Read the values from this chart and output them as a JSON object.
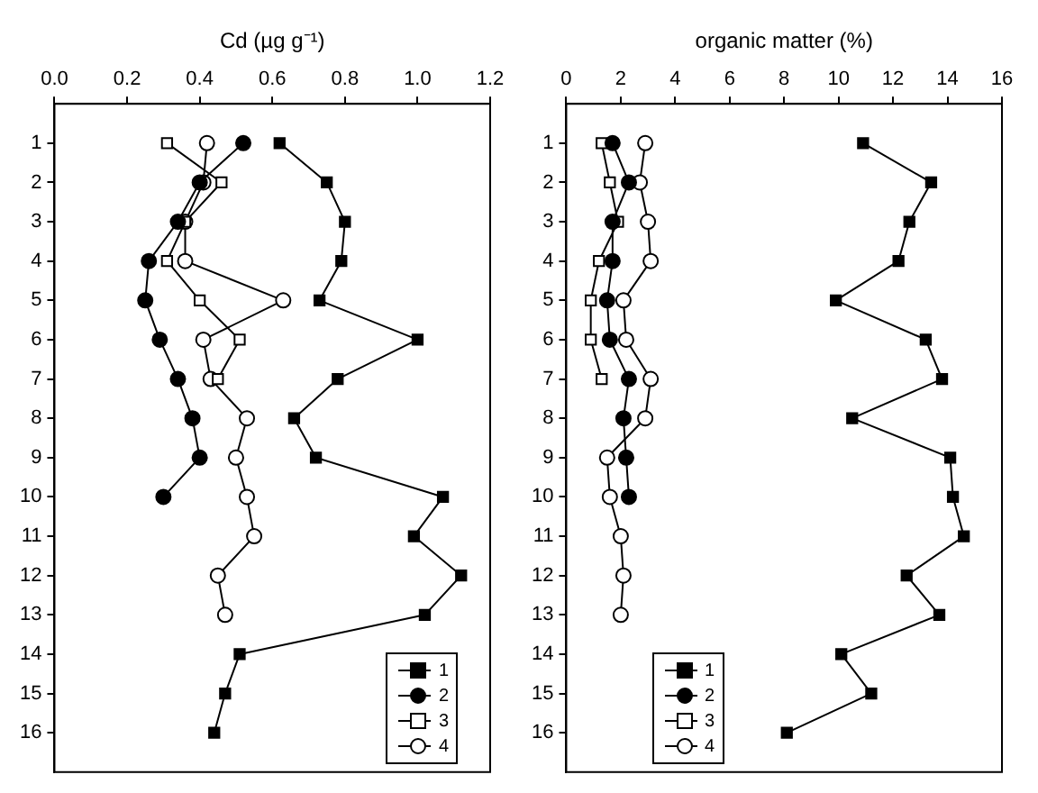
{
  "chart_data": [
    {
      "type": "line",
      "xlabel": "Cd (µg g⁻¹)",
      "xlim": [
        0,
        1.2
      ],
      "xticks": [
        {
          "value": 0,
          "label": "0.0"
        },
        {
          "value": 0.2,
          "label": "0.2"
        },
        {
          "value": 0.4,
          "label": "0.4"
        },
        {
          "value": 0.6,
          "label": "0.6"
        },
        {
          "value": 0.8,
          "label": "0.8"
        },
        {
          "value": 1.0,
          "label": "1.0"
        },
        {
          "value": 1.2,
          "label": "1.2"
        }
      ],
      "ylim": [
        17,
        0
      ],
      "yticks": [
        1,
        2,
        3,
        4,
        5,
        6,
        7,
        8,
        9,
        10,
        11,
        12,
        13,
        14,
        15,
        16
      ],
      "grid": false,
      "legend": "bottom right",
      "series": [
        {
          "name": "1",
          "color": "#000000",
          "marker": "square",
          "x": [
            0.62,
            0.75,
            0.8,
            0.79,
            0.73,
            1.0,
            0.78,
            0.66,
            0.72,
            1.07,
            0.99,
            1.12,
            1.02,
            0.51,
            0.47,
            0.44
          ],
          "values": [
            1,
            2,
            3,
            4,
            5,
            6,
            7,
            8,
            9,
            10,
            11,
            12,
            13,
            14,
            15,
            16
          ]
        },
        {
          "name": "2",
          "color": "#000000",
          "marker": "circle",
          "x": [
            0.52,
            0.4,
            0.34,
            0.26,
            0.25,
            0.29,
            0.34,
            0.38,
            0.4,
            0.3
          ],
          "values": [
            1,
            2,
            3,
            4,
            5,
            6,
            7,
            8,
            9,
            10
          ]
        },
        {
          "name": "3",
          "color": "#ffffff",
          "marker": "square",
          "x": [
            0.31,
            0.46,
            0.36,
            0.31,
            0.4,
            0.51,
            0.45
          ],
          "values": [
            1,
            2,
            3,
            4,
            5,
            6,
            7
          ]
        },
        {
          "name": "4",
          "color": "#ffffff",
          "marker": "circle",
          "x": [
            0.42,
            0.41,
            0.36,
            0.36,
            0.63,
            0.41,
            0.43,
            0.53,
            0.5,
            0.53,
            0.55,
            0.45,
            0.47
          ],
          "values": [
            1,
            2,
            3,
            4,
            5,
            6,
            7,
            8,
            9,
            10,
            11,
            12,
            13
          ]
        }
      ]
    },
    {
      "type": "line",
      "xlabel": "organic matter (%)",
      "xlim": [
        0,
        16
      ],
      "xticks": [
        0,
        2,
        4,
        6,
        8,
        10,
        12,
        14,
        16
      ],
      "ylim": [
        17,
        0
      ],
      "yticks": [
        1,
        2,
        3,
        4,
        5,
        6,
        7,
        8,
        9,
        10,
        11,
        12,
        13,
        14,
        15,
        16
      ],
      "grid": false,
      "legend": "bottom left",
      "series": [
        {
          "name": "1",
          "color": "#000000",
          "marker": "square",
          "x": [
            10.9,
            13.4,
            12.6,
            12.2,
            9.9,
            13.2,
            13.8,
            10.5,
            14.1,
            14.2,
            14.6,
            12.5,
            13.7,
            10.1,
            11.2,
            8.1
          ],
          "values": [
            1,
            2,
            3,
            4,
            5,
            6,
            7,
            8,
            9,
            10,
            11,
            12,
            13,
            14,
            15,
            16
          ]
        },
        {
          "name": "2",
          "color": "#000000",
          "marker": "circle",
          "x": [
            1.7,
            2.3,
            1.7,
            1.7,
            1.5,
            1.6,
            2.3,
            2.1,
            2.2,
            2.3
          ],
          "values": [
            1,
            2,
            3,
            4,
            5,
            6,
            7,
            8,
            9,
            10
          ]
        },
        {
          "name": "3",
          "color": "#ffffff",
          "marker": "square",
          "x": [
            1.3,
            1.6,
            1.9,
            1.2,
            0.9,
            0.9,
            1.3
          ],
          "values": [
            1,
            2,
            3,
            4,
            5,
            6,
            7
          ]
        },
        {
          "name": "4",
          "color": "#ffffff",
          "marker": "circle",
          "x": [
            2.9,
            2.7,
            3.0,
            3.1,
            2.1,
            2.2,
            3.1,
            2.9,
            1.5,
            1.6,
            2.0,
            2.1,
            2.0
          ],
          "values": [
            1,
            2,
            3,
            4,
            5,
            6,
            7,
            8,
            9,
            10,
            11,
            12,
            13
          ]
        }
      ]
    }
  ]
}
